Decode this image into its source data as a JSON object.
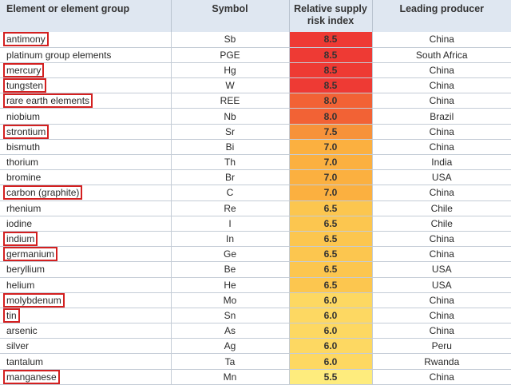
{
  "headers": {
    "element": "Element or element group",
    "symbol": "Symbol",
    "risk_line1": "Relative supply",
    "risk_line2": "risk index",
    "producer": "Leading producer"
  },
  "rows": [
    {
      "name": "antimony",
      "symbol": "Sb",
      "risk": "8.5",
      "producer": "China",
      "highlighted": true,
      "color": "#ee3a34"
    },
    {
      "name": "platinum group elements",
      "symbol": "PGE",
      "risk": "8.5",
      "producer": "South Africa",
      "highlighted": false,
      "color": "#ee3a34"
    },
    {
      "name": "mercury",
      "symbol": "Hg",
      "risk": "8.5",
      "producer": "China",
      "highlighted": true,
      "color": "#ee3a34"
    },
    {
      "name": "tungsten",
      "symbol": "W",
      "risk": "8.5",
      "producer": "China",
      "highlighted": true,
      "color": "#ee3a34"
    },
    {
      "name": "rare earth elements",
      "symbol": "REE",
      "risk": "8.0",
      "producer": "China",
      "highlighted": true,
      "color": "#f26235"
    },
    {
      "name": "niobium",
      "symbol": "Nb",
      "risk": "8.0",
      "producer": "Brazil",
      "highlighted": false,
      "color": "#f26235"
    },
    {
      "name": "strontium",
      "symbol": "Sr",
      "risk": "7.5",
      "producer": "China",
      "highlighted": true,
      "color": "#f7923a"
    },
    {
      "name": "bismuth",
      "symbol": "Bi",
      "risk": "7.0",
      "producer": "China",
      "highlighted": false,
      "color": "#fbb040"
    },
    {
      "name": "thorium",
      "symbol": "Th",
      "risk": "7.0",
      "producer": "India",
      "highlighted": false,
      "color": "#fbb040"
    },
    {
      "name": "bromine",
      "symbol": "Br",
      "risk": "7.0",
      "producer": "USA",
      "highlighted": false,
      "color": "#fbb040"
    },
    {
      "name": "carbon (graphite)",
      "symbol": "C",
      "risk": "7.0",
      "producer": "China",
      "highlighted": true,
      "color": "#fbb040"
    },
    {
      "name": "rhenium",
      "symbol": "Re",
      "risk": "6.5",
      "producer": "Chile",
      "highlighted": false,
      "color": "#fcc64f"
    },
    {
      "name": "iodine",
      "symbol": "I",
      "risk": "6.5",
      "producer": "Chile",
      "highlighted": false,
      "color": "#fcc64f"
    },
    {
      "name": "indium",
      "symbol": "In",
      "risk": "6.5",
      "producer": "China",
      "highlighted": true,
      "color": "#fcc64f"
    },
    {
      "name": "germanium",
      "symbol": "Ge",
      "risk": "6.5",
      "producer": "China",
      "highlighted": true,
      "color": "#fcc64f"
    },
    {
      "name": "beryllium",
      "symbol": "Be",
      "risk": "6.5",
      "producer": "USA",
      "highlighted": false,
      "color": "#fcc64f"
    },
    {
      "name": "helium",
      "symbol": "He",
      "risk": "6.5",
      "producer": "USA",
      "highlighted": false,
      "color": "#fcc64f"
    },
    {
      "name": "molybdenum",
      "symbol": "Mo",
      "risk": "6.0",
      "producer": "China",
      "highlighted": true,
      "color": "#fdd862"
    },
    {
      "name": "tin",
      "symbol": "Sn",
      "risk": "6.0",
      "producer": "China",
      "highlighted": true,
      "color": "#fdd862"
    },
    {
      "name": "arsenic",
      "symbol": "As",
      "risk": "6.0",
      "producer": "China",
      "highlighted": false,
      "color": "#fdd862"
    },
    {
      "name": "silver",
      "symbol": "Ag",
      "risk": "6.0",
      "producer": "Peru",
      "highlighted": false,
      "color": "#fdd862"
    },
    {
      "name": "tantalum",
      "symbol": "Ta",
      "risk": "6.0",
      "producer": "Rwanda",
      "highlighted": false,
      "color": "#fdd862"
    },
    {
      "name": "manganese",
      "symbol": "Mn",
      "risk": "5.5",
      "producer": "China",
      "highlighted": true,
      "color": "#feec7d"
    }
  ]
}
